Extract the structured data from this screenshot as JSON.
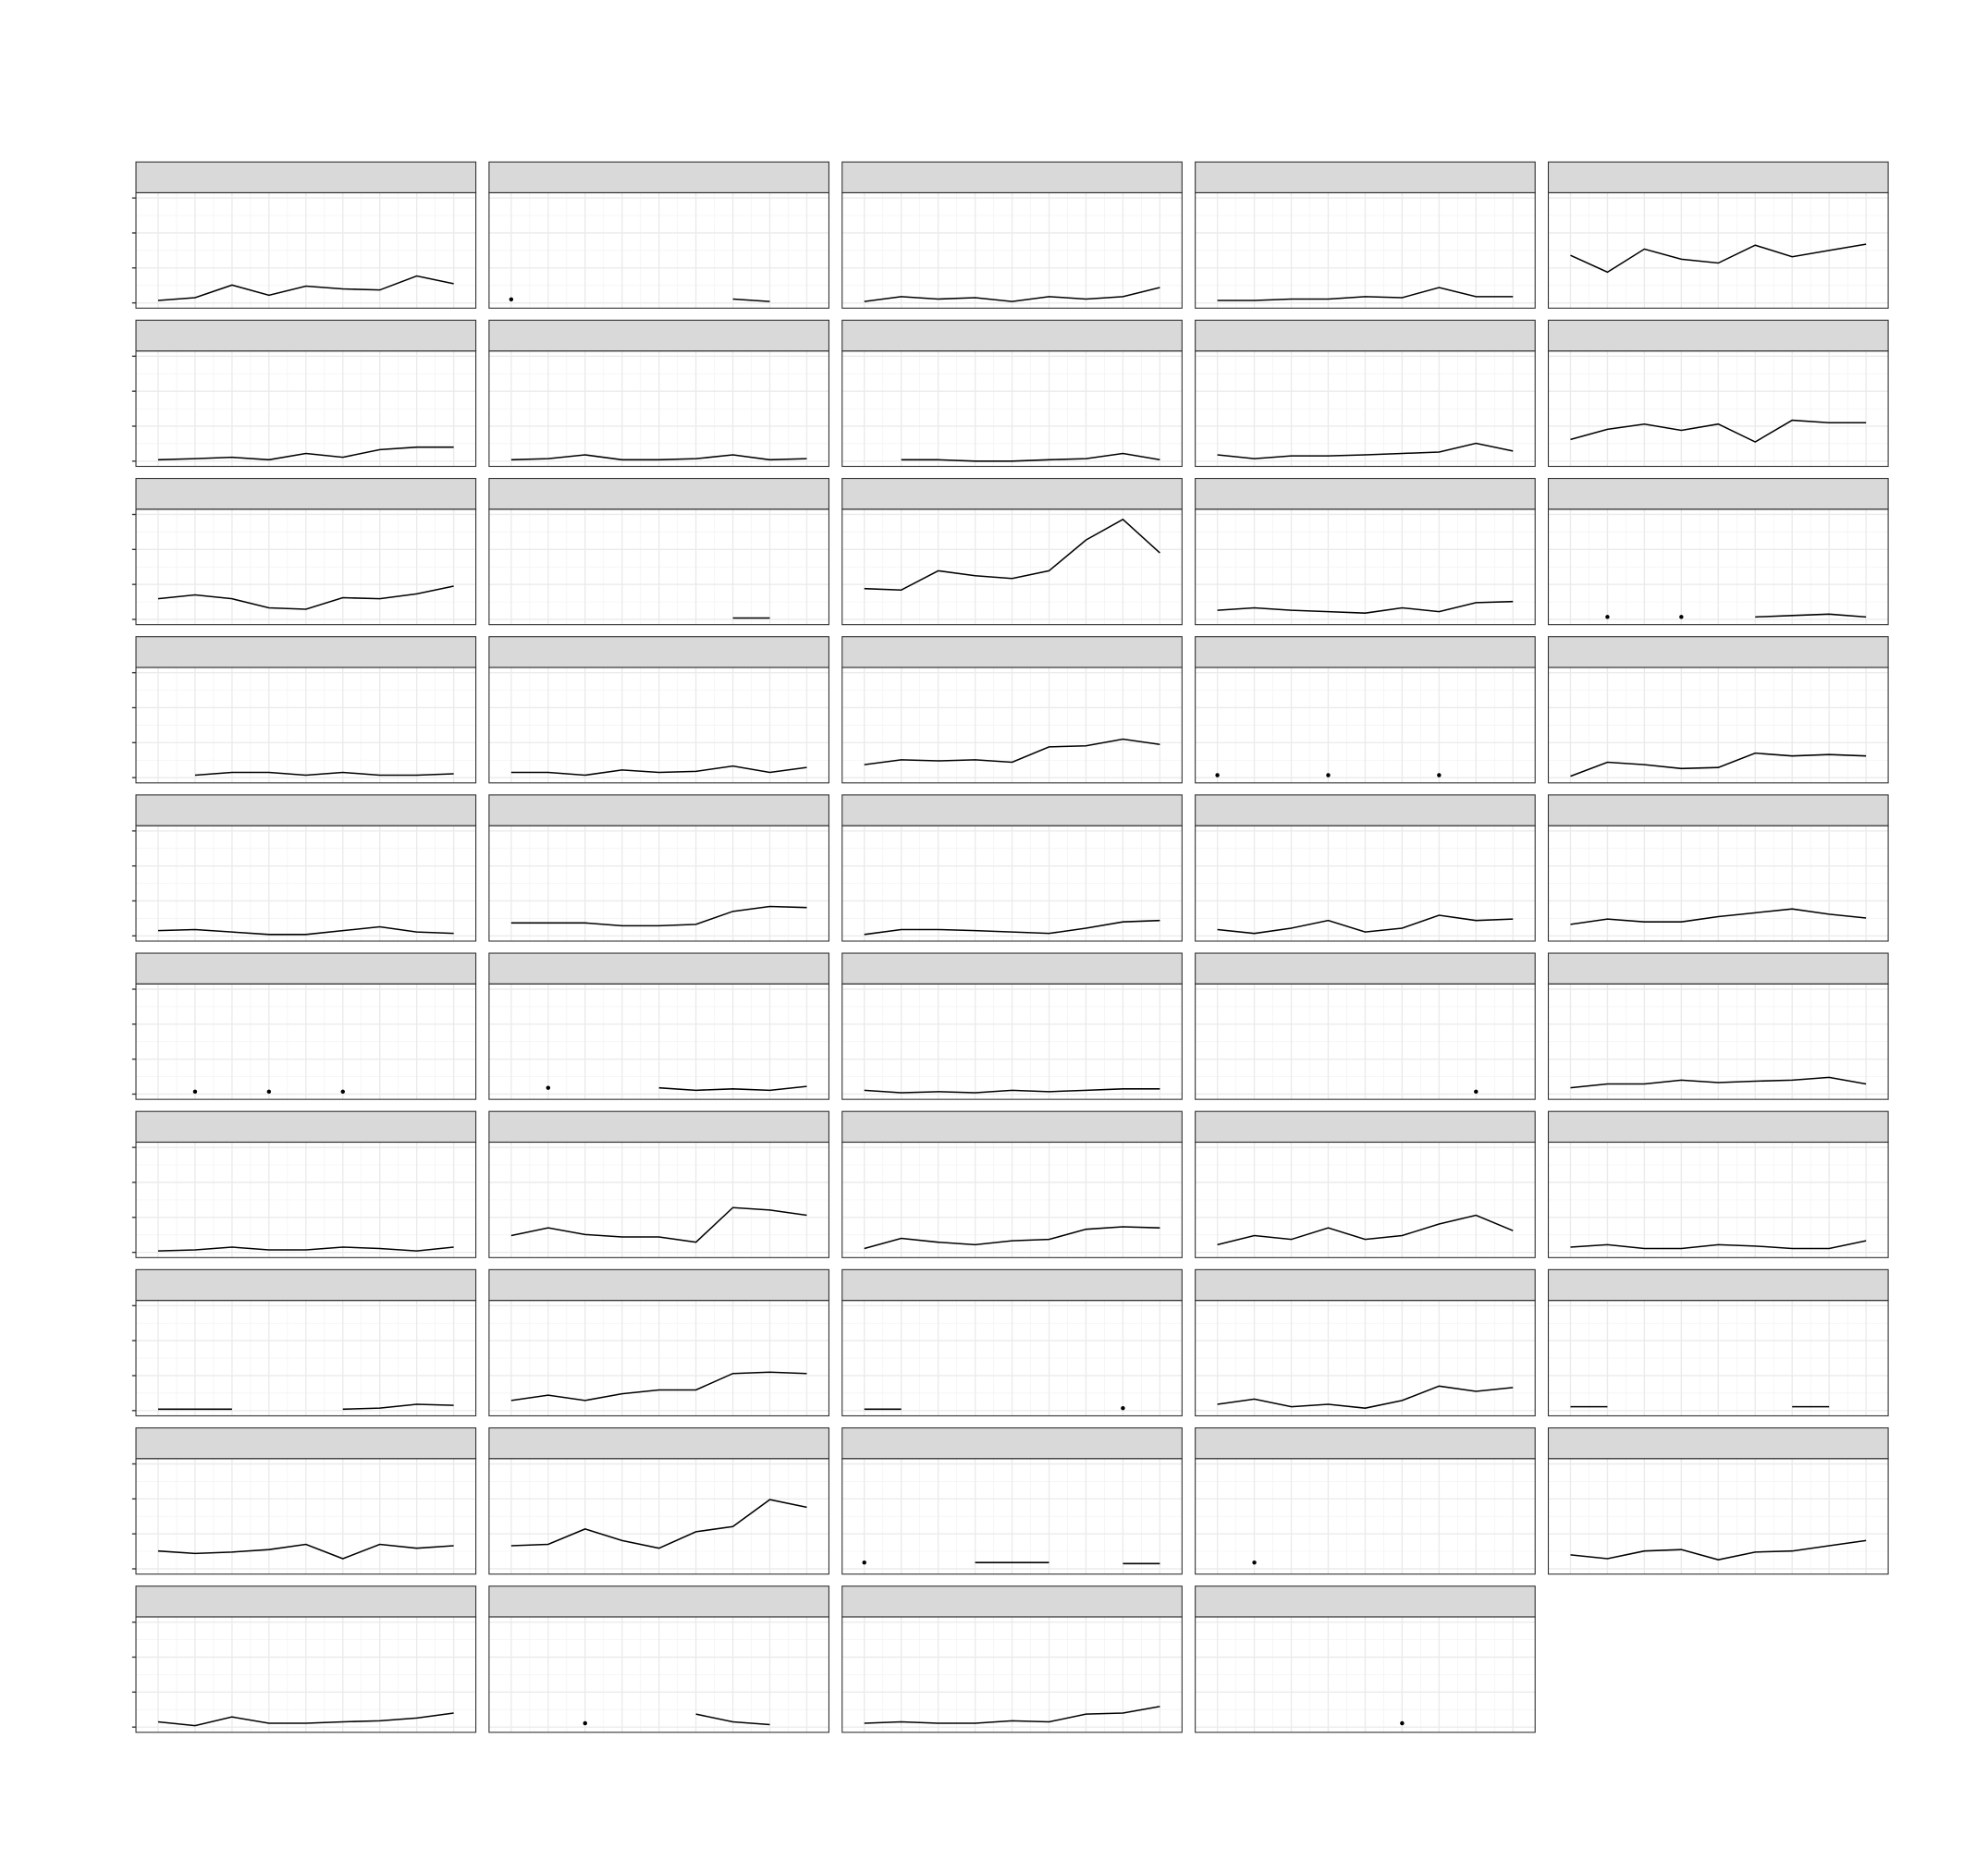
{
  "chart_data": {
    "type": "line",
    "color": "#000000",
    "grid": true,
    "x": [
      1,
      2,
      3,
      4,
      5,
      6,
      7,
      8,
      9
    ],
    "xlim": [
      0.4,
      9.6
    ],
    "xticks": [
      1,
      2,
      3,
      4,
      5,
      6,
      7,
      8,
      9
    ],
    "ylim": [
      -0.15,
      3.15
    ],
    "yticks": [
      0,
      1,
      2,
      3
    ],
    "facets": [
      {
        "values": [
          0.07,
          0.15,
          0.51,
          0.22,
          0.48,
          0.4,
          0.37,
          0.77,
          0.55
        ]
      },
      {
        "values": [
          0.1,
          null,
          null,
          null,
          null,
          null,
          0.11,
          0.04,
          null
        ]
      },
      {
        "values": [
          0.04,
          0.18,
          0.11,
          0.15,
          0.04,
          0.18,
          0.11,
          0.18,
          0.44
        ]
      },
      {
        "values": [
          0.07,
          0.07,
          0.11,
          0.11,
          0.18,
          0.15,
          0.44,
          0.18,
          0.18
        ]
      },
      {
        "values": [
          1.36,
          0.88,
          1.54,
          1.25,
          1.14,
          1.65,
          1.32,
          1.5,
          1.68
        ]
      },
      {
        "values": [
          0.04,
          0.07,
          0.11,
          0.04,
          0.22,
          0.11,
          0.33,
          0.4,
          0.4
        ]
      },
      {
        "values": [
          0.04,
          0.07,
          0.18,
          0.04,
          0.04,
          0.07,
          0.18,
          0.04,
          0.07
        ]
      },
      {
        "values": [
          null,
          0.04,
          0.04,
          0,
          0,
          0.04,
          0.07,
          0.22,
          0.04
        ]
      },
      {
        "values": [
          0.18,
          0.07,
          0.15,
          0.15,
          0.18,
          0.22,
          0.26,
          0.51,
          0.29
        ]
      },
      {
        "values": [
          0.62,
          0.91,
          1.06,
          0.88,
          1.06,
          0.55,
          1.17,
          1.1,
          1.1
        ]
      },
      {
        "values": [
          0.59,
          0.7,
          0.59,
          0.33,
          0.29,
          0.62,
          0.59,
          0.73,
          0.95
        ]
      },
      {
        "values": [
          null,
          null,
          null,
          null,
          null,
          null,
          0.04,
          0.04,
          null
        ]
      },
      {
        "values": [
          0.88,
          0.84,
          1.39,
          1.25,
          1.17,
          1.39,
          2.27,
          2.86,
          1.9
        ]
      },
      {
        "values": [
          0.26,
          0.33,
          0.26,
          0.22,
          0.18,
          0.33,
          0.22,
          0.48,
          0.51
        ]
      },
      {
        "values": [
          null,
          0.07,
          null,
          0.07,
          null,
          0.07,
          0.11,
          0.15,
          0.07
        ]
      },
      {
        "values": [
          null,
          0.07,
          0.15,
          0.15,
          0.07,
          0.15,
          0.07,
          0.07,
          0.11
        ]
      },
      {
        "values": [
          0.15,
          0.15,
          0.07,
          0.22,
          0.15,
          0.18,
          0.33,
          0.15,
          0.29
        ]
      },
      {
        "values": [
          0.37,
          0.51,
          0.48,
          0.51,
          0.44,
          0.88,
          0.91,
          1.1,
          0.95
        ]
      },
      {
        "values": [
          0.07,
          null,
          null,
          0.07,
          null,
          null,
          0.07,
          null,
          null
        ]
      },
      {
        "values": [
          0.04,
          0.44,
          0.37,
          0.26,
          0.29,
          0.7,
          0.62,
          0.66,
          0.62
        ]
      },
      {
        "values": [
          0.15,
          0.18,
          0.11,
          0.04,
          0.04,
          0.15,
          0.26,
          0.11,
          0.07
        ]
      },
      {
        "values": [
          0.37,
          0.37,
          0.37,
          0.29,
          0.29,
          0.33,
          0.7,
          0.84,
          0.81
        ]
      },
      {
        "values": [
          0.04,
          0.18,
          0.18,
          0.15,
          0.11,
          0.07,
          0.22,
          0.4,
          0.44
        ]
      },
      {
        "values": [
          0.18,
          0.07,
          0.22,
          0.44,
          0.11,
          0.22,
          0.59,
          0.44,
          0.48
        ]
      },
      {
        "values": [
          0.33,
          0.48,
          0.4,
          0.4,
          0.55,
          0.66,
          0.77,
          0.62,
          0.51
        ]
      },
      {
        "values": [
          null,
          0.07,
          null,
          0.07,
          null,
          0.07,
          null,
          null,
          null
        ]
      },
      {
        "values": [
          null,
          0.18,
          null,
          null,
          0.18,
          0.11,
          0.15,
          0.11,
          0.22
        ]
      },
      {
        "values": [
          0.11,
          0.04,
          0.07,
          0.04,
          0.11,
          0.07,
          0.11,
          0.15,
          0.15
        ]
      },
      {
        "values": [
          null,
          null,
          null,
          null,
          null,
          null,
          null,
          0.07,
          null
        ]
      },
      {
        "values": [
          0.18,
          0.29,
          0.29,
          0.4,
          0.33,
          0.37,
          0.4,
          0.48,
          0.29
        ]
      },
      {
        "values": [
          0.04,
          0.07,
          0.15,
          0.07,
          0.07,
          0.15,
          0.11,
          0.04,
          0.15
        ]
      },
      {
        "values": [
          0.48,
          0.7,
          0.51,
          0.44,
          0.44,
          0.29,
          1.28,
          1.21,
          1.06
        ]
      },
      {
        "values": [
          0.11,
          0.4,
          0.29,
          0.22,
          0.33,
          0.37,
          0.66,
          0.73,
          0.7
        ]
      },
      {
        "values": [
          0.22,
          0.48,
          0.37,
          0.7,
          0.37,
          0.48,
          0.81,
          1.06,
          0.62
        ]
      },
      {
        "values": [
          0.15,
          0.22,
          0.11,
          0.11,
          0.22,
          0.18,
          0.11,
          0.11,
          0.33
        ]
      },
      {
        "values": [
          0.04,
          0.04,
          0.04,
          null,
          null,
          0.04,
          0.07,
          0.18,
          0.15
        ]
      },
      {
        "values": [
          0.29,
          0.44,
          0.29,
          0.48,
          0.59,
          0.59,
          1.06,
          1.1,
          1.06
        ]
      },
      {
        "values": [
          0.04,
          0.04,
          null,
          null,
          null,
          null,
          null,
          0.07,
          null
        ]
      },
      {
        "values": [
          0.18,
          0.33,
          0.11,
          0.18,
          0.07,
          0.29,
          0.7,
          0.55,
          0.66
        ]
      },
      {
        "values": [
          0.11,
          0.11,
          null,
          null,
          null,
          null,
          0.11,
          0.11,
          null
        ]
      },
      {
        "values": [
          0.51,
          0.44,
          0.48,
          0.55,
          0.7,
          0.29,
          0.7,
          0.59,
          0.66
        ]
      },
      {
        "values": [
          0.66,
          0.7,
          1.14,
          0.81,
          0.59,
          1.06,
          1.21,
          1.98,
          1.76
        ]
      },
      {
        "values": [
          0.18,
          null,
          null,
          0.18,
          0.18,
          0.18,
          null,
          0.15,
          0.15
        ]
      },
      {
        "values": [
          null,
          0.18,
          null,
          null,
          null,
          null,
          null,
          null,
          null
        ]
      },
      {
        "values": [
          0.4,
          0.29,
          0.51,
          0.55,
          0.26,
          0.48,
          0.51,
          0.66,
          0.81
        ]
      },
      {
        "values": [
          0.15,
          0.04,
          0.29,
          0.11,
          0.11,
          0.15,
          0.18,
          0.26,
          0.4
        ]
      },
      {
        "values": [
          null,
          null,
          0.11,
          null,
          null,
          0.37,
          0.15,
          0.07,
          null
        ]
      },
      {
        "values": [
          0.11,
          0.15,
          0.11,
          0.11,
          0.18,
          0.15,
          0.37,
          0.4,
          0.59
        ]
      },
      {
        "values": [
          null,
          null,
          null,
          null,
          null,
          0.11,
          null,
          null,
          null
        ]
      }
    ]
  }
}
